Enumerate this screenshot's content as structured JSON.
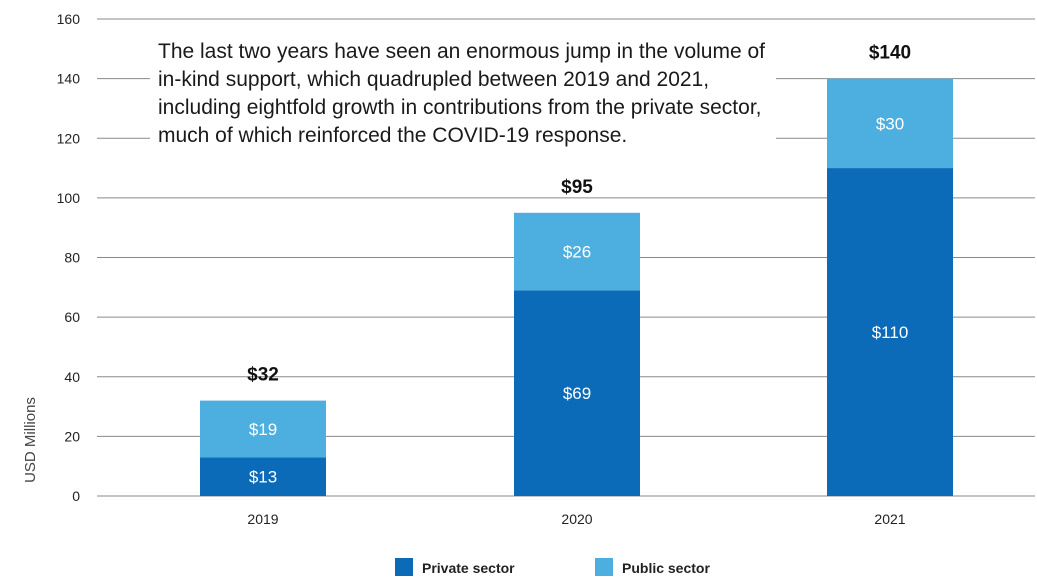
{
  "chart_data": {
    "type": "bar",
    "stacked": true,
    "categories": [
      "2019",
      "2020",
      "2021"
    ],
    "series": [
      {
        "name": "Private sector",
        "values": [
          13,
          69,
          110
        ],
        "labels": [
          "$13",
          "$69",
          "$110"
        ],
        "color": "#0b6bb8"
      },
      {
        "name": "Public sector",
        "values": [
          19,
          26,
          30
        ],
        "labels": [
          "$19",
          "$26",
          "$30"
        ],
        "color": "#4daee0"
      }
    ],
    "totals": [
      32,
      95,
      140
    ],
    "total_labels": [
      "$32",
      "$95",
      "$140"
    ],
    "ylabel": "USD Millions",
    "ylim": [
      0,
      160
    ],
    "yticks": [
      0,
      20,
      40,
      60,
      80,
      100,
      120,
      140,
      160
    ],
    "grid": true,
    "legend_position": "bottom-center",
    "annotation": "The last two years have seen an enormous jump in the volume of in-kind support, which quadrupled between 2019 and 2021, including eightfold growth in contributions from the private sector, much of which reinforced the COVID-19 response."
  }
}
